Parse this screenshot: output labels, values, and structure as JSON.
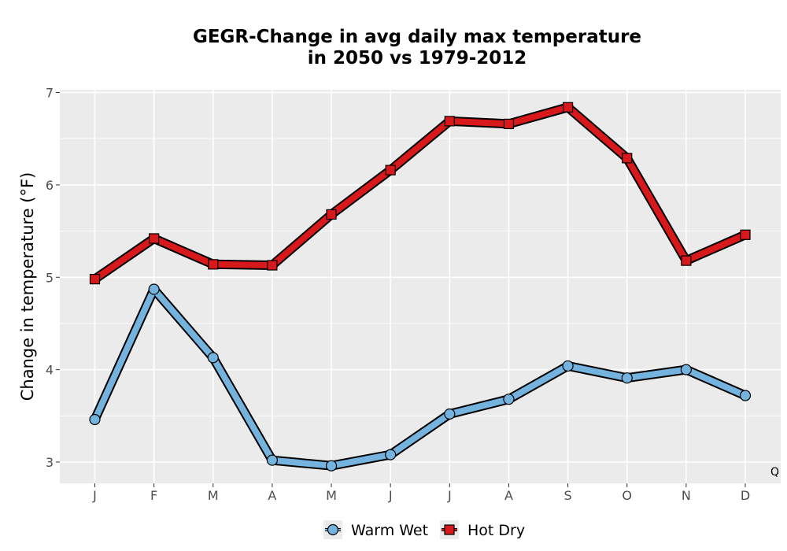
{
  "chart_data": {
    "type": "line",
    "title": [
      "GEGR-Change in avg daily max temperature",
      "in 2050 vs 1979-2012"
    ],
    "xlabel": "",
    "ylabel": "Change in temperature (°F)",
    "categories": [
      "J",
      "F",
      "M",
      "A",
      "M",
      "J",
      "J",
      "A",
      "S",
      "O",
      "N",
      "D"
    ],
    "ylim": [
      2.77,
      7.03
    ],
    "yticks": [
      3,
      4,
      5,
      6,
      7
    ],
    "grid": true,
    "legend_position": "bottom",
    "corner_note": "Q",
    "series": [
      {
        "name": "Warm Wet",
        "marker": "circle",
        "color": "#74b3de",
        "values": [
          3.46,
          4.87,
          4.13,
          3.02,
          2.96,
          3.08,
          3.52,
          3.68,
          4.04,
          3.91,
          4.0,
          3.72
        ]
      },
      {
        "name": "Hot Dry",
        "marker": "square",
        "color": "#d7191c",
        "values": [
          4.98,
          5.42,
          5.14,
          5.13,
          5.68,
          6.16,
          6.69,
          6.66,
          6.84,
          6.29,
          5.18,
          5.46
        ]
      }
    ]
  }
}
